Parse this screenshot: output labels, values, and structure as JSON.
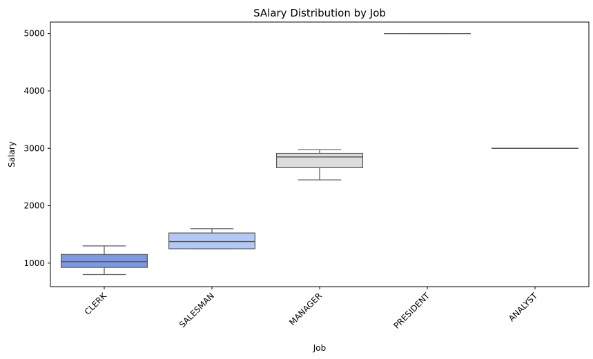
{
  "chart_data": {
    "type": "box",
    "title": "SAlary Distribution by Job",
    "xlabel": "Job",
    "ylabel": "Salary",
    "ylim": [
      590,
      5200
    ],
    "yticks": [
      1000,
      2000,
      3000,
      4000,
      5000
    ],
    "categories": [
      "CLERK",
      "SALESMAN",
      "MANAGER",
      "PRESIDENT",
      "ANALYST"
    ],
    "boxes": [
      {
        "category": "CLERK",
        "whisker_low": 800,
        "q1": 925,
        "median": 1025,
        "q3": 1150,
        "whisker_high": 1300,
        "color": "#7b98e7"
      },
      {
        "category": "SALESMAN",
        "whisker_low": 1250,
        "q1": 1250,
        "median": 1375,
        "q3": 1525,
        "whisker_high": 1600,
        "color": "#b2c8f5"
      },
      {
        "category": "MANAGER",
        "whisker_low": 2450,
        "q1": 2662.5,
        "median": 2850,
        "q3": 2912.5,
        "whisker_high": 2975,
        "color": "#dcdcdc"
      },
      {
        "category": "PRESIDENT",
        "whisker_low": 5000,
        "q1": 5000,
        "median": 5000,
        "q3": 5000,
        "whisker_high": 5000,
        "color": "#f6b79d"
      },
      {
        "category": "ANALYST",
        "whisker_low": 3000,
        "q1": 3000,
        "median": 3000,
        "q3": 3000,
        "whisker_high": 3000,
        "color": "#e4705a"
      }
    ],
    "grid": false,
    "edge_color": "#555555"
  }
}
